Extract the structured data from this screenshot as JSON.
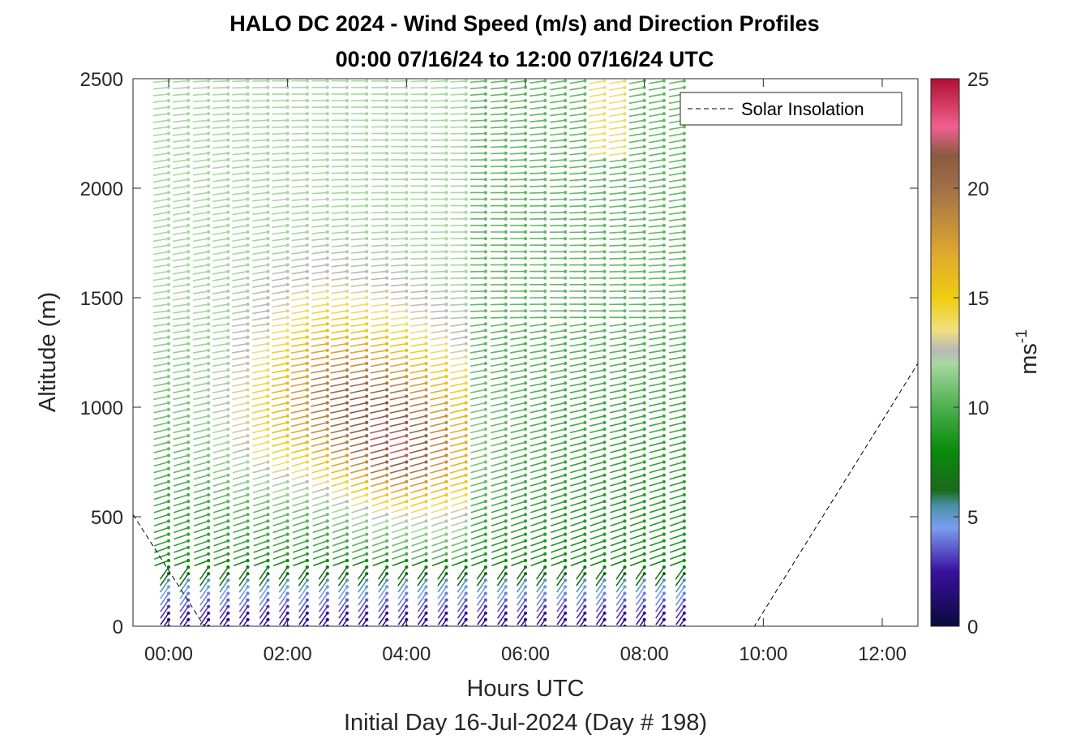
{
  "chart_data": {
    "type": "wind-barb-profile",
    "title": "HALO DC 2024 - Wind Speed (m/s) and Direction Profiles",
    "subtitle": "00:00 07/16/24 to 12:00 07/16/24  UTC",
    "xlabel": "Hours UTC",
    "xlabel2": "Initial Day 16-Jul-2024 (Day # 198)",
    "ylabel": "Altitude (m)",
    "xlim": [
      -0.6,
      12.6
    ],
    "ylim": [
      0,
      2500
    ],
    "xticks": [
      0,
      2,
      4,
      6,
      8,
      10,
      12
    ],
    "xtick_labels": [
      "00:00",
      "02:00",
      "04:00",
      "06:00",
      "08:00",
      "10:00",
      "12:00"
    ],
    "yticks": [
      0,
      500,
      1000,
      1500,
      2000,
      2500
    ],
    "ytick_labels": [
      "0",
      "500",
      "1000",
      "1500",
      "2000",
      "2500"
    ],
    "profile_times_h": [
      0.0,
      0.33,
      0.67,
      1.0,
      1.33,
      1.67,
      2.0,
      2.33,
      2.67,
      3.0,
      3.33,
      3.67,
      4.0,
      4.33,
      4.67,
      5.0,
      5.33,
      5.67,
      6.0,
      6.33,
      6.67,
      7.0,
      7.33,
      7.67,
      8.0,
      8.33,
      8.67
    ],
    "altitude_step_m": 30,
    "max_altitude_m": 2490,
    "speed_field_note": "low (2-5 m/s) below ~250 m; 15-20 m/s jet 400-1100 m peaking ~22 m/s near 04:10, 750 m; 10-14 m/s aloft",
    "legend": {
      "entries": [
        "Solar Insolation"
      ],
      "placement": "top-right"
    },
    "solar_insolation": {
      "x": [
        -0.6,
        0.6,
        9.85,
        12.6
      ],
      "y": [
        510,
        0,
        0,
        1200
      ]
    },
    "colorbar": {
      "label": "ms",
      "label_superscript": "-1",
      "range": [
        0,
        25
      ],
      "ticks": [
        0,
        5,
        10,
        15,
        20,
        25
      ],
      "tick_labels": [
        "0",
        "5",
        "10",
        "15",
        "20",
        "25"
      ],
      "stops": [
        {
          "v": 0,
          "c": "#0a0a3c"
        },
        {
          "v": 2.5,
          "c": "#3a10a0"
        },
        {
          "v": 4.5,
          "c": "#7a9ef0"
        },
        {
          "v": 5.5,
          "c": "#4a90a8"
        },
        {
          "v": 6.2,
          "c": "#1a6a1a"
        },
        {
          "v": 8,
          "c": "#0a8a0a"
        },
        {
          "v": 10,
          "c": "#4caf50"
        },
        {
          "v": 12,
          "c": "#a8d8a0"
        },
        {
          "v": 12.6,
          "c": "#b8b8b8"
        },
        {
          "v": 13.5,
          "c": "#f0e080"
        },
        {
          "v": 15,
          "c": "#f0cc10"
        },
        {
          "v": 17,
          "c": "#e0a830"
        },
        {
          "v": 20,
          "c": "#a07048"
        },
        {
          "v": 21.5,
          "c": "#8a5a40"
        },
        {
          "v": 22.8,
          "c": "#f06090"
        },
        {
          "v": 25,
          "c": "#b01030"
        }
      ]
    }
  }
}
